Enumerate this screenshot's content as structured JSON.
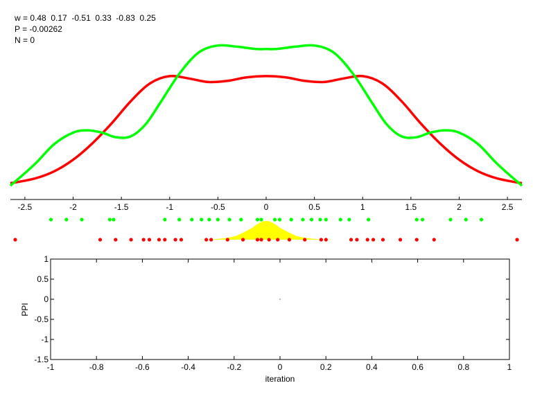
{
  "header": {
    "w_line": "w = 0.48  0.17  -0.51  0.33  -0.83  0.25",
    "p_line": "P = -0.00262",
    "n_line": "N = 0"
  },
  "colors": {
    "red": "#ff0000",
    "green": "#00ff00",
    "yellow": "#ffff00",
    "axis": "#000000",
    "background": "#ffffff"
  },
  "chart_data": [
    {
      "type": "line",
      "title": "",
      "xlabel": "",
      "ylabel": "",
      "xlim": [
        -2.65,
        2.65
      ],
      "x_ticks": [
        -2.5,
        -2,
        -1.5,
        -1,
        -0.5,
        0,
        0.5,
        1,
        1.5,
        2,
        2.5
      ],
      "x_tick_labels": [
        "-2.5",
        "-2",
        "-1.5",
        "-1",
        "-0.5",
        "0",
        "0.5",
        "1",
        "1.5",
        "2",
        "2.5"
      ],
      "y_axis_visible": false,
      "series": [
        {
          "color": "red",
          "x": [
            -2.65,
            -2.4,
            -2.2,
            -2.0,
            -1.8,
            -1.6,
            -1.4,
            -1.2,
            -1.0,
            -0.8,
            -0.6,
            -0.4,
            -0.2,
            0.0,
            0.2,
            0.4,
            0.6,
            0.8,
            1.0,
            1.2,
            1.4,
            1.6,
            1.8,
            2.0,
            2.2,
            2.4,
            2.65
          ],
          "y": [
            0.02,
            0.06,
            0.12,
            0.22,
            0.36,
            0.53,
            0.72,
            0.87,
            0.93,
            0.91,
            0.88,
            0.89,
            0.92,
            0.93,
            0.92,
            0.89,
            0.88,
            0.91,
            0.93,
            0.87,
            0.72,
            0.53,
            0.36,
            0.22,
            0.12,
            0.06,
            0.02
          ]
        },
        {
          "color": "green",
          "x": [
            -2.65,
            -2.4,
            -2.2,
            -2.0,
            -1.85,
            -1.7,
            -1.55,
            -1.4,
            -1.25,
            -1.1,
            -0.9,
            -0.7,
            -0.5,
            -0.3,
            -0.1,
            0.0,
            0.1,
            0.3,
            0.5,
            0.7,
            0.9,
            1.1,
            1.25,
            1.4,
            1.55,
            1.7,
            1.85,
            2.0,
            2.2,
            2.4,
            2.65
          ],
          "y": [
            0.0,
            0.18,
            0.35,
            0.45,
            0.47,
            0.45,
            0.41,
            0.42,
            0.52,
            0.7,
            0.95,
            1.13,
            1.19,
            1.18,
            1.16,
            1.16,
            1.16,
            1.18,
            1.19,
            1.13,
            0.95,
            0.7,
            0.52,
            0.42,
            0.41,
            0.45,
            0.47,
            0.45,
            0.35,
            0.18,
            0.0
          ]
        }
      ]
    },
    {
      "type": "scatter",
      "xlim": [
        -2.65,
        2.65
      ],
      "green_points_x": [
        -2.23,
        -2.07,
        -1.91,
        -1.62,
        -1.58,
        -1.05,
        -0.9,
        -0.77,
        -0.67,
        -0.59,
        -0.5,
        -0.38,
        -0.26,
        -0.09,
        -0.05,
        0.09,
        0.14,
        0.26,
        0.38,
        0.47,
        0.56,
        0.62,
        0.77,
        0.86,
        1.06,
        1.56,
        1.62,
        1.91,
        2.07,
        2.23
      ],
      "red_points_x": [
        -2.6,
        -1.72,
        -1.56,
        -1.4,
        -1.27,
        -1.21,
        -1.11,
        -1.05,
        -0.94,
        -0.88,
        -0.62,
        -0.57,
        -0.4,
        -0.24,
        -0.09,
        -0.05,
        0.03,
        0.12,
        0.24,
        0.4,
        0.57,
        0.62,
        0.88,
        0.94,
        1.05,
        1.11,
        1.21,
        1.39,
        1.56,
        1.74,
        2.6
      ],
      "density": {
        "color": "yellow",
        "x": [
          -0.72,
          -0.5,
          -0.35,
          -0.25,
          -0.15,
          -0.1,
          -0.05,
          0.0,
          0.05,
          0.1,
          0.15,
          0.25,
          0.35,
          0.5,
          0.72
        ],
        "y": [
          0.0,
          0.04,
          0.15,
          0.35,
          0.62,
          0.8,
          0.95,
          1.0,
          0.95,
          0.8,
          0.62,
          0.35,
          0.15,
          0.04,
          0.0
        ]
      }
    },
    {
      "type": "line",
      "title": "",
      "xlabel": "iteration",
      "ylabel": "PPI",
      "xlim": [
        -1,
        1
      ],
      "ylim": [
        -1.5,
        1
      ],
      "x_ticks": [
        -1,
        -0.8,
        -0.6,
        -0.4,
        -0.2,
        0,
        0.2,
        0.4,
        0.6,
        0.8,
        1
      ],
      "x_tick_labels": [
        "-1",
        "-0.8",
        "-0.6",
        "-0.4",
        "-0.2",
        "0",
        "0.2",
        "0.4",
        "0.6",
        "0.8",
        "1"
      ],
      "y_ticks": [
        -1.5,
        -1,
        -0.5,
        0,
        0.5,
        1
      ],
      "y_tick_labels": [
        "-1.5",
        "-1",
        "-0.5",
        "0",
        "0.5",
        "1"
      ],
      "series": [
        {
          "x": [
            0
          ],
          "y": [
            0
          ]
        }
      ]
    }
  ]
}
